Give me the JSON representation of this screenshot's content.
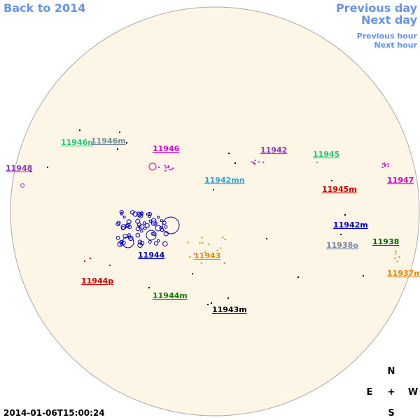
{
  "navigation": {
    "back": "Back to 2014",
    "previous_day": "Previous day",
    "next_day": "Next day",
    "previous_hour": "Previous hour",
    "next_hour": "Next hour",
    "color": "#6495ed"
  },
  "regions": [
    {
      "label": "11946n",
      "color": "#22cc77"
    },
    {
      "label": "11946m",
      "color": "#778899"
    },
    {
      "label": "11946",
      "color": "#dd00dd"
    },
    {
      "label": "11942",
      "color": "#9933cc"
    },
    {
      "label": "11945",
      "color": "#22cc77"
    },
    {
      "label": "11948",
      "color": "#9933cc"
    },
    {
      "label": "11942mn",
      "color": "#22aadd"
    },
    {
      "label": "11945m",
      "color": "#dd0000"
    },
    {
      "label": "11947",
      "color": "#dd00dd"
    },
    {
      "label": "11942m",
      "color": "#0000cc"
    },
    {
      "label": "11938o",
      "color": "#7788aa"
    },
    {
      "label": "11938",
      "color": "#006600"
    },
    {
      "label": "11944",
      "color": "#0000cc"
    },
    {
      "label": "11943",
      "color": "#ee8800"
    },
    {
      "label": "11937m",
      "color": "#ee8800"
    },
    {
      "label": "11944p",
      "color": "#dd0000"
    },
    {
      "label": "11944m",
      "color": "#008800"
    },
    {
      "label": "11943m",
      "color": "#000000"
    }
  ],
  "compass": {
    "north": "N",
    "east": "E",
    "center": "+",
    "west": "W",
    "south": "S"
  },
  "timestamp": "2014-01-06T15:00:24"
}
